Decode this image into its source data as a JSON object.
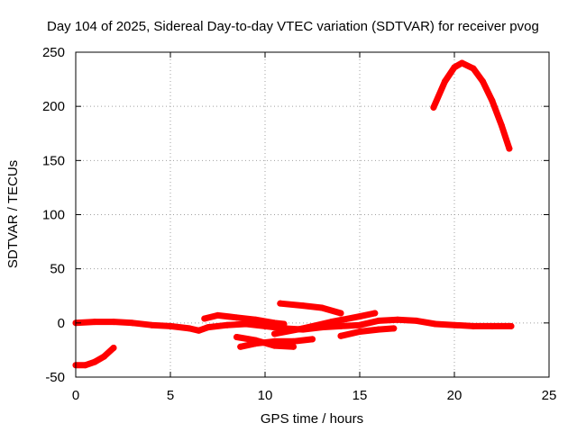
{
  "chart_data": {
    "type": "scatter",
    "title": "Day 104 of 2025, Sidereal Day-to-day VTEC variation (SDTVAR) for receiver pvog",
    "xlabel": "GPS time / hours",
    "ylabel": "SDTVAR / TECUs",
    "xlim": [
      0,
      25
    ],
    "ylim": [
      -50,
      250
    ],
    "xticks": [
      "0",
      "5",
      "10",
      "15",
      "20",
      "25"
    ],
    "yticks": [
      "-50",
      "0",
      "50",
      "100",
      "150",
      "200",
      "250"
    ],
    "grid": true,
    "color": "#ff0000",
    "series": [
      {
        "name": "arc-1",
        "x": [
          0.0,
          1.0,
          2.0,
          3.0,
          4.0,
          5.0,
          6.0,
          6.5,
          7.0,
          8.0,
          9.0,
          10.0,
          11.0,
          12.0,
          13.0,
          14.0,
          15.0,
          16.0,
          17.0,
          18.0,
          19.0,
          20.0,
          21.0,
          22.0,
          23.0
        ],
        "y": [
          0,
          1,
          1,
          0,
          -2,
          -3,
          -5,
          -7,
          -4,
          -2,
          -1,
          -3,
          -5,
          -6,
          -4,
          -3,
          -2,
          2,
          3,
          2,
          -1,
          -2,
          -3,
          -3,
          -3
        ]
      },
      {
        "name": "arc-2",
        "x": [
          0.0,
          0.5,
          1.0,
          1.5,
          2.0
        ],
        "y": [
          -39,
          -39,
          -36,
          -31,
          -23
        ]
      },
      {
        "name": "arc-3",
        "x": [
          6.8,
          7.5,
          8.5,
          9.5,
          10.5,
          11.0
        ],
        "y": [
          4,
          7,
          5,
          3,
          0,
          -1
        ]
      },
      {
        "name": "arc-4",
        "x": [
          8.7,
          9.5,
          10.5,
          11.5,
          12.5
        ],
        "y": [
          -22,
          -19,
          -17,
          -17,
          -15
        ]
      },
      {
        "name": "arc-5",
        "x": [
          8.5,
          9.5,
          10.5,
          11.5
        ],
        "y": [
          -13,
          -16,
          -21,
          -22
        ]
      },
      {
        "name": "arc-6",
        "x": [
          10.8,
          12.0,
          13.0,
          14.0
        ],
        "y": [
          18,
          16,
          14,
          9
        ]
      },
      {
        "name": "arc-7",
        "x": [
          10.5,
          12.0,
          13.5,
          15.0,
          15.8
        ],
        "y": [
          -10,
          -5,
          1,
          6,
          9
        ]
      },
      {
        "name": "arc-8",
        "x": [
          14.0,
          15.0,
          16.0,
          16.8
        ],
        "y": [
          -12,
          -8,
          -6,
          -5
        ]
      },
      {
        "name": "arc-9",
        "x": [
          18.9,
          19.5,
          20.0,
          20.4,
          21.0,
          21.5,
          22.0,
          22.5,
          22.9
        ],
        "y": [
          199,
          223,
          236,
          240,
          235,
          223,
          205,
          182,
          161
        ]
      }
    ]
  }
}
